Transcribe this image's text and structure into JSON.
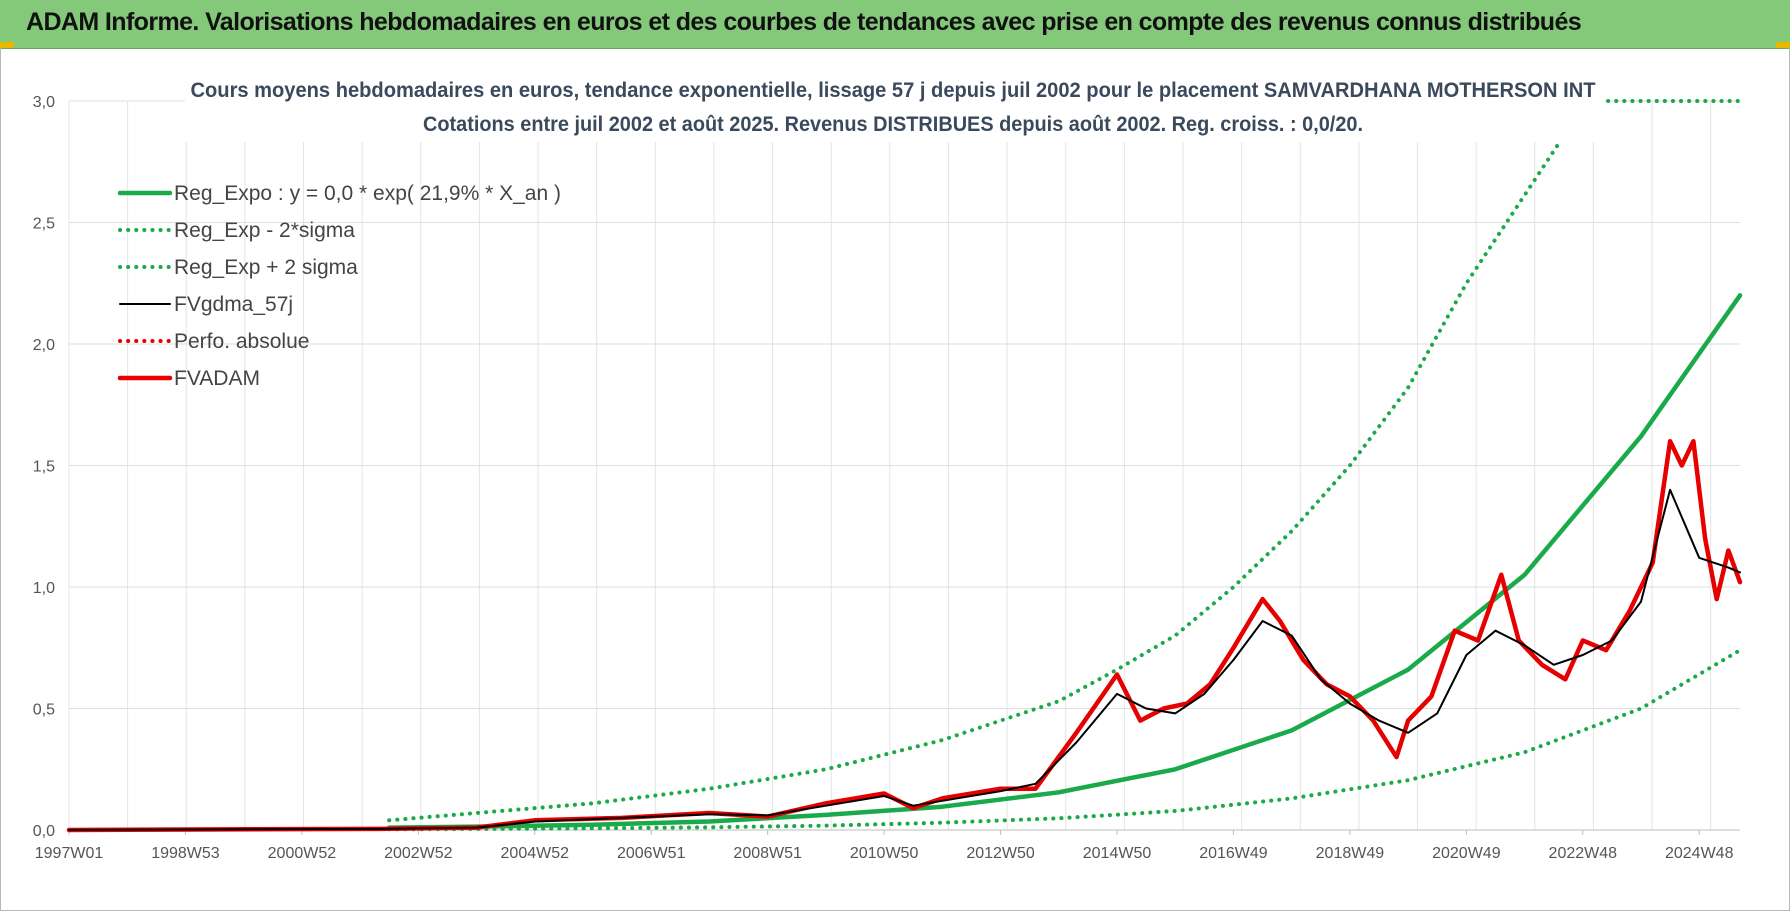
{
  "header": {
    "title": "ADAM Informe. Valorisations hebdomadaires en euros et des courbes de tendances avec prise en compte des revenus connus distribués"
  },
  "chart_data": {
    "type": "line",
    "title": "Cours moyens hebdomadaires en euros, tendance exponentielle, lissage 57 j depuis juil 2002 pour le placement SAMVARDHANA MOTHERSON INT",
    "subtitle": "Cotations entre juil 2002 et août 2025. Revenus DISTRIBUES depuis août 2002. Reg. croiss. : 0,0/20.",
    "xlabel": "",
    "ylabel": "",
    "x_tick_labels": [
      "1997W01",
      "1998W53",
      "2000W52",
      "2002W52",
      "2004W52",
      "2006W51",
      "2008W51",
      "2010W50",
      "2012W50",
      "2014W50",
      "2016W49",
      "2018W49",
      "2020W49",
      "2022W48",
      "2024W48"
    ],
    "y_ticks": [
      "0,0",
      "0,5",
      "1,0",
      "1,5",
      "2,0",
      "2,5",
      "3,0"
    ],
    "xlim": [
      1997.0,
      2025.7
    ],
    "ylim": [
      0,
      3.0
    ],
    "grid": true,
    "legend_position": "top-left",
    "colors": {
      "trend": "#1aaa4a",
      "band": "#1aaa4a",
      "smooth": "#000000",
      "perf": "#e60000",
      "price": "#e60000"
    },
    "series": [
      {
        "name": "Reg_Expo : y = 0,0 * exp( 21,9% *  X_an )",
        "style": "solid-thick",
        "color": "#1aaa4a",
        "x": [
          2002.5,
          2004,
          2006,
          2008,
          2010,
          2012,
          2014,
          2016,
          2018,
          2020,
          2022,
          2024,
          2025.7
        ],
        "y": [
          0.01,
          0.014,
          0.022,
          0.035,
          0.062,
          0.096,
          0.155,
          0.25,
          0.41,
          0.66,
          1.05,
          1.62,
          2.2
        ]
      },
      {
        "name": "Reg_Exp - 2*sigma",
        "style": "dotted",
        "color": "#1aaa4a",
        "x": [
          2002.5,
          2004,
          2006,
          2008,
          2010,
          2012,
          2014,
          2016,
          2018,
          2020,
          2022,
          2024,
          2025.7
        ],
        "y": [
          0.003,
          0.004,
          0.007,
          0.011,
          0.018,
          0.03,
          0.048,
          0.078,
          0.13,
          0.205,
          0.32,
          0.5,
          0.74
        ]
      },
      {
        "name": "Reg_Exp + 2 sigma",
        "style": "dotted",
        "color": "#1aaa4a",
        "x": [
          2002.5,
          2004,
          2006,
          2008,
          2010,
          2012,
          2014,
          2015,
          2016,
          2017,
          2018,
          2019,
          2020,
          2021,
          2022.6
        ],
        "y": [
          0.04,
          0.07,
          0.11,
          0.17,
          0.25,
          0.37,
          0.53,
          0.66,
          0.8,
          1.0,
          1.23,
          1.5,
          1.82,
          2.25,
          2.83
        ]
      },
      {
        "name": "FVgdma_57j",
        "style": "solid",
        "color": "#000000",
        "x": [
          1997.0,
          2002.5,
          2004.0,
          2005.0,
          2006.5,
          2008.0,
          2009.0,
          2010.0,
          2011.0,
          2011.5,
          2012.0,
          2013.0,
          2013.6,
          2014.3,
          2015.0,
          2015.5,
          2016.0,
          2016.5,
          2017.0,
          2017.5,
          2018.0,
          2018.5,
          2019.0,
          2019.5,
          2020.0,
          2020.5,
          2021.0,
          2021.5,
          2022.0,
          2022.5,
          2023.0,
          2023.5,
          2024.0,
          2024.5,
          2025.0,
          2025.5,
          2025.7
        ],
        "y": [
          0.0,
          0.005,
          0.01,
          0.035,
          0.05,
          0.065,
          0.06,
          0.1,
          0.14,
          0.1,
          0.12,
          0.16,
          0.19,
          0.36,
          0.56,
          0.5,
          0.48,
          0.56,
          0.7,
          0.86,
          0.8,
          0.62,
          0.52,
          0.45,
          0.4,
          0.48,
          0.72,
          0.82,
          0.76,
          0.68,
          0.72,
          0.78,
          0.94,
          1.4,
          1.12,
          1.08,
          1.06
        ]
      },
      {
        "name": "Perfo. absolue",
        "style": "dotted",
        "color": "#e60000",
        "x": [],
        "y": []
      },
      {
        "name": "FVADAM",
        "style": "solid-thick",
        "color": "#e60000",
        "x": [
          1997.0,
          2002.5,
          2004.0,
          2005.0,
          2006.5,
          2008.0,
          2009.0,
          2010.0,
          2011.0,
          2011.5,
          2012.0,
          2013.0,
          2013.6,
          2014.3,
          2015.0,
          2015.4,
          2015.8,
          2016.2,
          2016.6,
          2017.0,
          2017.5,
          2017.8,
          2018.2,
          2018.6,
          2019.0,
          2019.4,
          2019.8,
          2020.0,
          2020.4,
          2020.8,
          2021.2,
          2021.6,
          2021.9,
          2022.3,
          2022.7,
          2023.0,
          2023.4,
          2023.8,
          2024.2,
          2024.5,
          2024.7,
          2024.9,
          2025.1,
          2025.3,
          2025.5,
          2025.7
        ],
        "y": [
          0.0,
          0.005,
          0.01,
          0.04,
          0.05,
          0.07,
          0.055,
          0.11,
          0.15,
          0.09,
          0.13,
          0.17,
          0.17,
          0.4,
          0.64,
          0.45,
          0.5,
          0.52,
          0.6,
          0.75,
          0.95,
          0.86,
          0.7,
          0.6,
          0.55,
          0.45,
          0.3,
          0.45,
          0.55,
          0.82,
          0.78,
          1.05,
          0.78,
          0.68,
          0.62,
          0.78,
          0.74,
          0.9,
          1.1,
          1.6,
          1.5,
          1.6,
          1.2,
          0.95,
          1.15,
          1.02
        ]
      }
    ]
  }
}
